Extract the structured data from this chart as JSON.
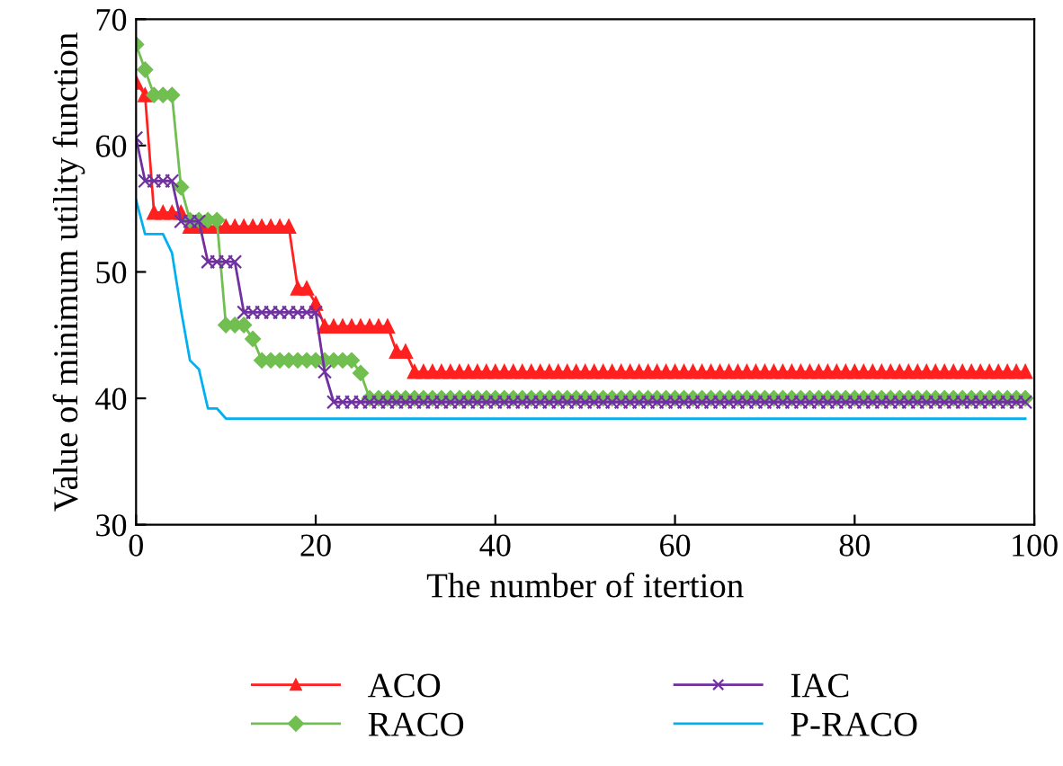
{
  "chart_data": {
    "type": "line",
    "xlabel": "The number of itertion",
    "ylabel": "Value of minimum utility function",
    "x": [
      0,
      1,
      2,
      3,
      4,
      5,
      6,
      7,
      8,
      9,
      10,
      11,
      12,
      13,
      14,
      15,
      16,
      17,
      18,
      19,
      20,
      21,
      22,
      23,
      24,
      25,
      26,
      27,
      28,
      29,
      30,
      31,
      32,
      33,
      34,
      35,
      36,
      37,
      38,
      39,
      40,
      41,
      42,
      43,
      44,
      45,
      46,
      47,
      48,
      49,
      50,
      51,
      52,
      53,
      54,
      55,
      56,
      57,
      58,
      59,
      60,
      61,
      62,
      63,
      64,
      65,
      66,
      67,
      68,
      69,
      70,
      71,
      72,
      73,
      74,
      75,
      76,
      77,
      78,
      79,
      80,
      81,
      82,
      83,
      84,
      85,
      86,
      87,
      88,
      89,
      90,
      91,
      92,
      93,
      94,
      95,
      96,
      97,
      98,
      99
    ],
    "series": [
      {
        "name": "ACO",
        "color": "#ff2020",
        "marker": "triangle",
        "values": [
          65,
          64,
          54.7,
          54.7,
          54.7,
          54.7,
          53.6,
          53.6,
          53.6,
          53.6,
          53.6,
          53.6,
          53.6,
          53.6,
          53.6,
          53.6,
          53.6,
          53.6,
          48.7,
          48.7,
          47.5,
          45.7,
          45.7,
          45.7,
          45.7,
          45.7,
          45.7,
          45.7,
          45.7,
          43.7,
          43.7,
          42.1,
          42.1,
          42.1,
          42.1,
          42.1,
          42.1,
          42.1,
          42.1,
          42.1,
          42.1,
          42.1,
          42.1,
          42.1,
          42.1,
          42.1,
          42.1,
          42.1,
          42.1,
          42.1,
          42.1,
          42.1,
          42.1,
          42.1,
          42.1,
          42.1,
          42.1,
          42.1,
          42.1,
          42.1,
          42.1,
          42.1,
          42.1,
          42.1,
          42.1,
          42.1,
          42.1,
          42.1,
          42.1,
          42.1,
          42.1,
          42.1,
          42.1,
          42.1,
          42.1,
          42.1,
          42.1,
          42.1,
          42.1,
          42.1,
          42.1,
          42.1,
          42.1,
          42.1,
          42.1,
          42.1,
          42.1,
          42.1,
          42.1,
          42.1,
          42.1,
          42.1,
          42.1,
          42.1,
          42.1,
          42.1,
          42.1,
          42.1,
          42.1,
          42.1
        ]
      },
      {
        "name": "RACO",
        "color": "#70bf50",
        "marker": "diamond",
        "values": [
          68,
          66,
          64,
          64,
          64,
          56.7,
          54.1,
          54.1,
          54.1,
          54.1,
          45.8,
          45.8,
          45.8,
          44.7,
          43,
          43,
          43,
          43,
          43,
          43,
          43,
          43,
          43,
          43,
          43,
          42,
          40,
          40,
          40,
          40,
          40,
          40,
          40,
          40,
          40,
          40,
          40,
          40,
          40,
          40,
          40,
          40,
          40,
          40,
          40,
          40,
          40,
          40,
          40,
          40,
          40,
          40,
          40,
          40,
          40,
          40,
          40,
          40,
          40,
          40,
          40,
          40,
          40,
          40,
          40,
          40,
          40,
          40,
          40,
          40,
          40,
          40,
          40,
          40,
          40,
          40,
          40,
          40,
          40,
          40,
          40,
          40,
          40,
          40,
          40,
          40,
          40,
          40,
          40,
          40,
          40,
          40,
          40,
          40,
          40,
          40,
          40,
          40,
          40,
          40
        ]
      },
      {
        "name": "IAC",
        "color": "#7030a0",
        "marker": "cross",
        "values": [
          60.6,
          57.2,
          57.2,
          57.2,
          57.2,
          54,
          54,
          54,
          50.8,
          50.8,
          50.8,
          50.8,
          46.8,
          46.8,
          46.8,
          46.8,
          46.8,
          46.8,
          46.8,
          46.8,
          46.8,
          42.1,
          39.7,
          39.7,
          39.7,
          39.7,
          39.7,
          39.7,
          39.7,
          39.7,
          39.7,
          39.7,
          39.7,
          39.7,
          39.7,
          39.7,
          39.7,
          39.7,
          39.7,
          39.7,
          39.7,
          39.7,
          39.7,
          39.7,
          39.7,
          39.7,
          39.7,
          39.7,
          39.7,
          39.7,
          39.7,
          39.7,
          39.7,
          39.7,
          39.7,
          39.7,
          39.7,
          39.7,
          39.7,
          39.7,
          39.7,
          39.7,
          39.7,
          39.7,
          39.7,
          39.7,
          39.7,
          39.7,
          39.7,
          39.7,
          39.7,
          39.7,
          39.7,
          39.7,
          39.7,
          39.7,
          39.7,
          39.7,
          39.7,
          39.7,
          39.7,
          39.7,
          39.7,
          39.7,
          39.7,
          39.7,
          39.7,
          39.7,
          39.7,
          39.7,
          39.7,
          39.7,
          39.7,
          39.7,
          39.7,
          39.7,
          39.7,
          39.7,
          39.7,
          39.7
        ]
      },
      {
        "name": "P-RACO",
        "color": "#00b0f0",
        "marker": "none",
        "values": [
          55.7,
          53,
          53,
          53,
          51.5,
          47,
          43,
          42.3,
          39.2,
          39.2,
          38.4,
          38.4,
          38.4,
          38.4,
          38.4,
          38.4,
          38.4,
          38.4,
          38.4,
          38.4,
          38.4,
          38.4,
          38.4,
          38.4,
          38.4,
          38.4,
          38.4,
          38.4,
          38.4,
          38.4,
          38.4,
          38.4,
          38.4,
          38.4,
          38.4,
          38.4,
          38.4,
          38.4,
          38.4,
          38.4,
          38.4,
          38.4,
          38.4,
          38.4,
          38.4,
          38.4,
          38.4,
          38.4,
          38.4,
          38.4,
          38.4,
          38.4,
          38.4,
          38.4,
          38.4,
          38.4,
          38.4,
          38.4,
          38.4,
          38.4,
          38.4,
          38.4,
          38.4,
          38.4,
          38.4,
          38.4,
          38.4,
          38.4,
          38.4,
          38.4,
          38.4,
          38.4,
          38.4,
          38.4,
          38.4,
          38.4,
          38.4,
          38.4,
          38.4,
          38.4,
          38.4,
          38.4,
          38.4,
          38.4,
          38.4,
          38.4,
          38.4,
          38.4,
          38.4,
          38.4,
          38.4,
          38.4,
          38.4,
          38.4,
          38.4,
          38.4,
          38.4,
          38.4,
          38.4,
          38.4
        ]
      }
    ],
    "xlim": [
      0,
      100
    ],
    "xticks": [
      0,
      20,
      40,
      60,
      80,
      100
    ],
    "ylim": [
      30,
      70
    ],
    "yticks": [
      30,
      40,
      50,
      60,
      70
    ],
    "grid": false,
    "legend": "bottom",
    "line_style": "solid"
  }
}
